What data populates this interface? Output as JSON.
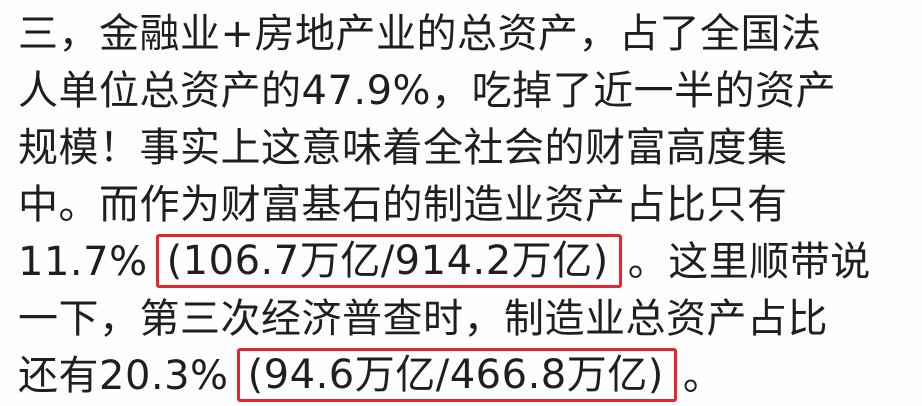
{
  "lines": [
    "三，金融业+房地产业的总资产，占了全国法",
    "人单位总资产的47.9%，吃掉了近一半的资产",
    "规模！事实上这意味着全社会的财富高度集",
    "中。而作为财富基石的制造业资产占比只有"
  ],
  "line5": {
    "before": "11.7%",
    "boxed": "(106.7万亿/914.2万亿)",
    "after": "。这里顺带说"
  },
  "line6": "一下，第三次经济普查时，制造业总资产占比",
  "line7": {
    "before": "还有20.3%",
    "boxed": "(94.6万亿/466.8万亿)",
    "after": "。"
  },
  "highlight_color": "#e5262a"
}
